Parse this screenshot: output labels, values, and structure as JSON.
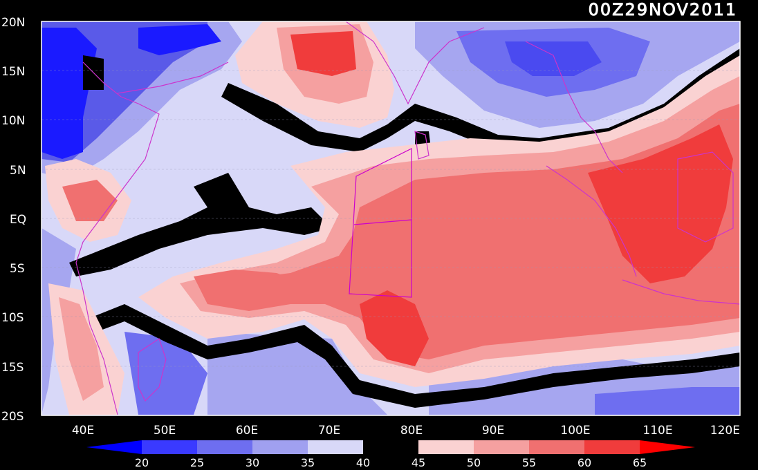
{
  "timestamp": "00Z29NOV2011",
  "map": {
    "lat_labels": [
      "20N",
      "15N",
      "10N",
      "5N",
      "EQ",
      "5S",
      "10S",
      "15S",
      "20S"
    ],
    "lon_labels": [
      "40E",
      "50E",
      "60E",
      "70E",
      "80E",
      "90E",
      "100E",
      "110E",
      "120E"
    ],
    "lon_range": [
      35,
      120
    ],
    "lat_range": [
      -20,
      20
    ],
    "grid_style": "dashed"
  },
  "colorbar": {
    "labels": [
      "20",
      "25",
      "30",
      "35",
      "40",
      "45",
      "50",
      "55",
      "60",
      "65"
    ],
    "colors": [
      "#0000ff",
      "#3a3aff",
      "#6e6ef0",
      "#a0a0f0",
      "#d8d8f8",
      "#000000",
      "#fad2d2",
      "#f5a0a0",
      "#f07070",
      "#f03c3c",
      "#ff0000"
    ]
  },
  "colors": {
    "background": "#000000",
    "low_deep": "#1a1aff",
    "low_mid": "#5a5ae8",
    "low_light": "#a6a6f0",
    "low_pale": "#d8d8f8",
    "threshold": "#000000",
    "high_pale": "#fad2d2",
    "high_light": "#f5a0a0",
    "high_mid": "#f07070",
    "high_deep": "#f03c3c",
    "high_max": "#ff0000",
    "coastline": "#cc33cc"
  }
}
